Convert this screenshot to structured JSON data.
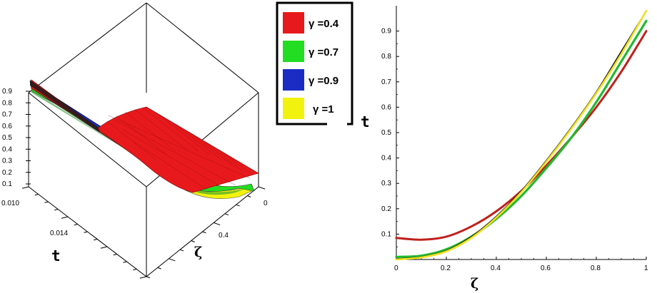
{
  "chart_data": [
    {
      "type": "surface",
      "xlabel": "t",
      "ylabel": "ζ",
      "x_ticks": [
        "0.010",
        "0.014"
      ],
      "y_ticks": [
        "0",
        "0.4"
      ],
      "z_ticks": [
        "0.9",
        "0.8",
        "0.7",
        "0.6",
        "0.5",
        "0.4",
        "0.3",
        "0.2",
        "0.1"
      ],
      "zlim": [
        0,
        1
      ],
      "series": [
        {
          "name": "γ =0.4",
          "color": "#e8191c"
        },
        {
          "name": "γ =0.7",
          "color": "#22dd22"
        },
        {
          "name": "γ =0.9",
          "color": "#1a2cc4"
        },
        {
          "name": "γ =1",
          "color": "#f2f20f"
        }
      ]
    },
    {
      "type": "line",
      "xlabel": "ζ",
      "ylabel": "t",
      "xlim": [
        0,
        1
      ],
      "ylim": [
        0,
        1
      ],
      "x_ticks": [
        "0",
        "0.2",
        "0.4",
        "0.6",
        "0.8",
        "1"
      ],
      "y_ticks": [
        "0.1",
        "0.2",
        "0.3",
        "0.4",
        "0.5",
        "0.6",
        "0.7",
        "0.8",
        "0.9"
      ],
      "x": [
        0,
        0.1,
        0.2,
        0.3,
        0.4,
        0.5,
        0.6,
        0.7,
        0.8,
        0.9,
        1.0
      ],
      "series": [
        {
          "name": "γ =0.4",
          "color": "#c0201c",
          "values": [
            0.085,
            0.078,
            0.09,
            0.13,
            0.19,
            0.27,
            0.37,
            0.48,
            0.6,
            0.74,
            0.9
          ]
        },
        {
          "name": "γ =0.7",
          "color": "#22b830",
          "values": [
            0.01,
            0.015,
            0.04,
            0.09,
            0.16,
            0.25,
            0.36,
            0.48,
            0.62,
            0.78,
            0.94
          ]
        },
        {
          "name": "γ =0.9",
          "color": "#111111",
          "values": [
            0.003,
            0.01,
            0.035,
            0.09,
            0.17,
            0.27,
            0.39,
            0.52,
            0.66,
            0.82,
            0.98
          ]
        },
        {
          "name": "γ =1",
          "color": "#f0e020",
          "values": [
            0.0,
            0.008,
            0.032,
            0.085,
            0.165,
            0.265,
            0.385,
            0.515,
            0.655,
            0.81,
            0.98
          ]
        }
      ]
    }
  ]
}
